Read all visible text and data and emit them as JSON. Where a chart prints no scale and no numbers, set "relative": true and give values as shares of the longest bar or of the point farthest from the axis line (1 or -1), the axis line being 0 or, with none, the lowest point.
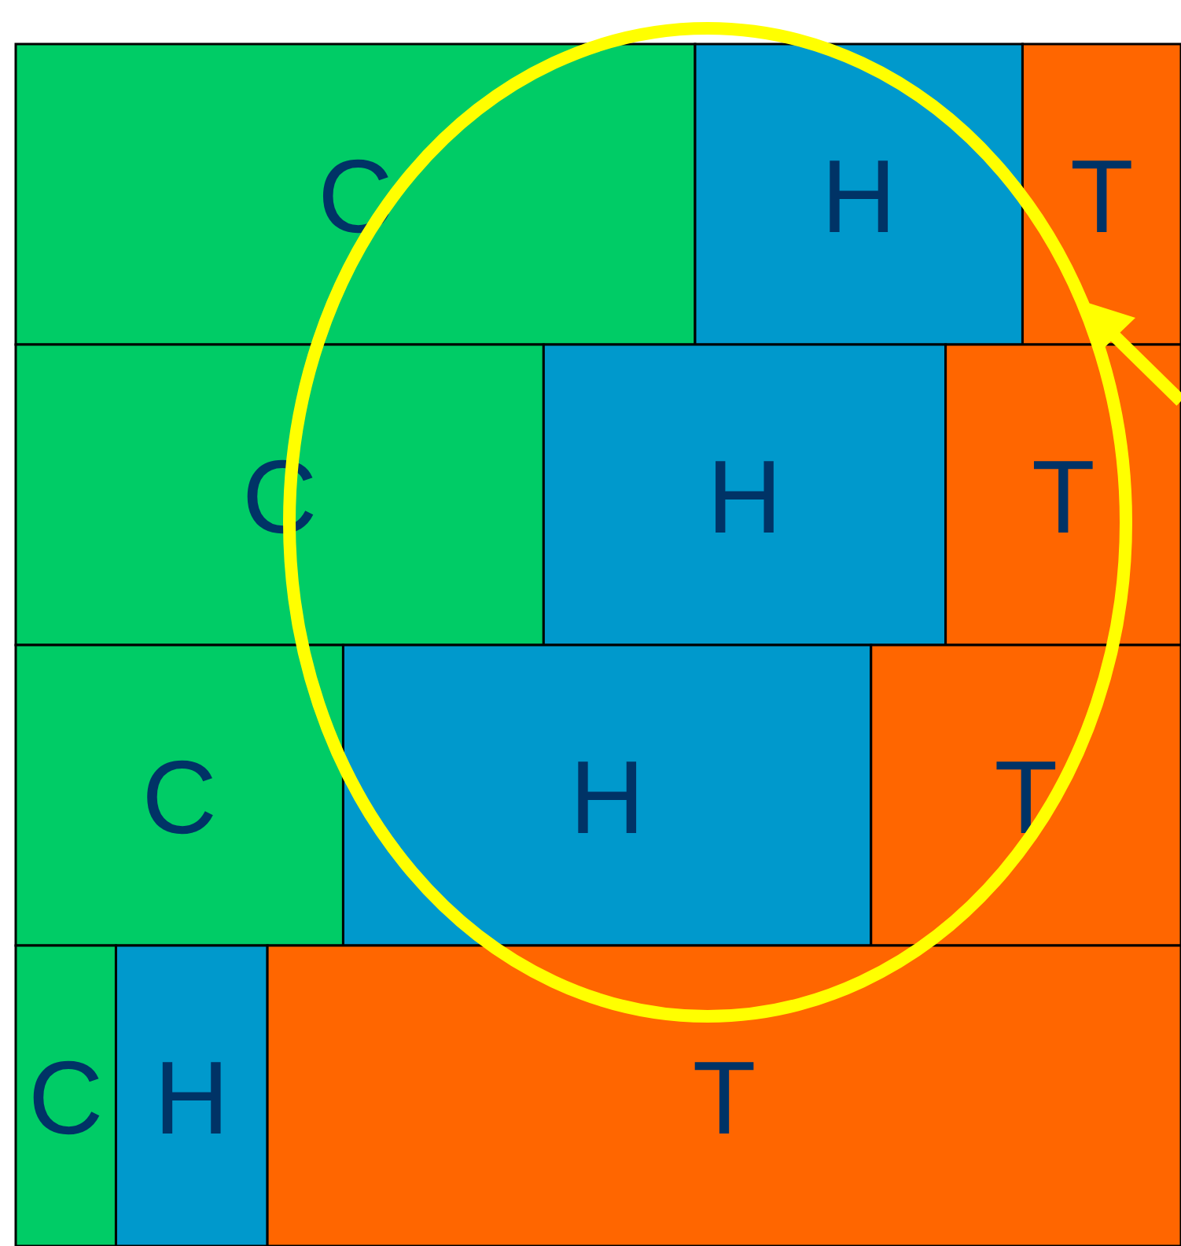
{
  "chart_data": {
    "type": "bar",
    "orientation": "horizontal",
    "stacked": true,
    "relative": true,
    "categories": [
      null,
      null,
      null,
      null
    ],
    "series": [
      {
        "name": "C",
        "color": "#00cc66",
        "values": [
          0.583,
          0.453,
          0.281,
          0.086
        ]
      },
      {
        "name": "H",
        "color": "#0099cc",
        "values": [
          0.281,
          0.345,
          0.453,
          0.13
        ]
      },
      {
        "name": "T",
        "color": "#ff6600",
        "values": [
          0.136,
          0.202,
          0.266,
          0.784
        ]
      }
    ]
  }
}
